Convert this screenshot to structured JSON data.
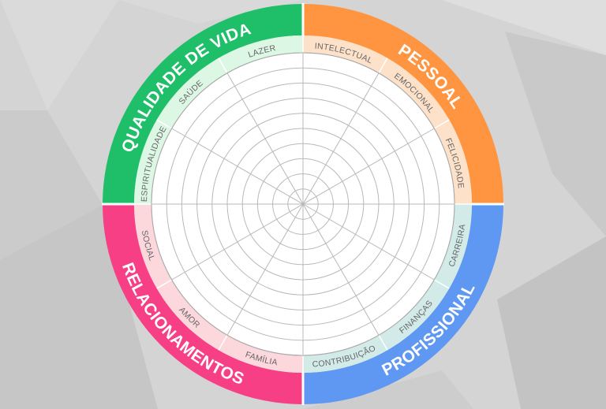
{
  "colors": {
    "background": "#d4d4d4",
    "wheel_face": "#ffffff",
    "grid_line": "#b8b8b8"
  },
  "quadrants": [
    {
      "title": "QUALIDADE DE VIDA",
      "color": "#1fbf6a",
      "band_color": "#dcf7e4",
      "items": [
        "ESPIRITUALIDADE",
        "SAÚDE",
        "LAZER"
      ]
    },
    {
      "title": "PESSOAL",
      "color": "#ff9540",
      "band_color": "#fde1c9",
      "items": [
        "INTELECTUAL",
        "EMOCIONAL",
        "FELICIDADE"
      ]
    },
    {
      "title": "PROFISSIONAL",
      "color": "#5e98f2",
      "band_color": "#d2ebe8",
      "items": [
        "CARREIRA",
        "FINANÇAS",
        "CONTRIBUIÇÃO"
      ]
    },
    {
      "title": "RELACIONAMENTOS",
      "color": "#f73f86",
      "band_color": "#fcd7db",
      "items": [
        "FAMÍLIA",
        "AMOR",
        "SOCIAL"
      ]
    }
  ],
  "rings": 10
}
